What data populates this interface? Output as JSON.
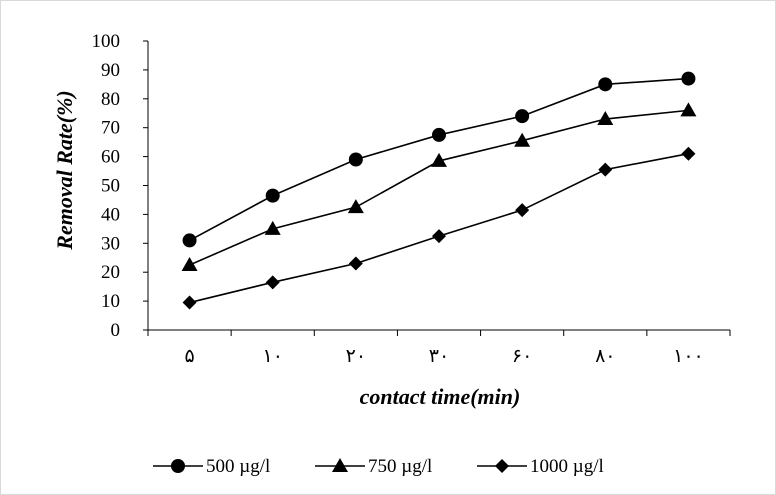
{
  "chart_data": {
    "type": "line",
    "categories": [
      "۵",
      "۱۰",
      "۲۰",
      "۳۰",
      "۶۰",
      "۸۰",
      "۱۰۰"
    ],
    "series": [
      {
        "name": "500 µg/l",
        "marker": "circle",
        "values": [
          31,
          46.5,
          59,
          67.5,
          74,
          85,
          87
        ]
      },
      {
        "name": "750 µg/l",
        "marker": "triangle",
        "values": [
          22.5,
          35,
          42.5,
          58.5,
          65.5,
          73,
          76
        ]
      },
      {
        "name": "1000 µg/l",
        "marker": "diamond",
        "values": [
          9.5,
          16.5,
          23,
          32.5,
          41.5,
          55.5,
          61
        ]
      }
    ],
    "xlabel": "contact time(min)",
    "ylabel": "Removal Rate(%)",
    "ylim": [
      0,
      100
    ],
    "yticks": [
      0,
      10,
      20,
      30,
      40,
      50,
      60,
      70,
      80,
      90,
      100
    ],
    "grid": false,
    "legend_position": "bottom",
    "color": "#000000"
  }
}
